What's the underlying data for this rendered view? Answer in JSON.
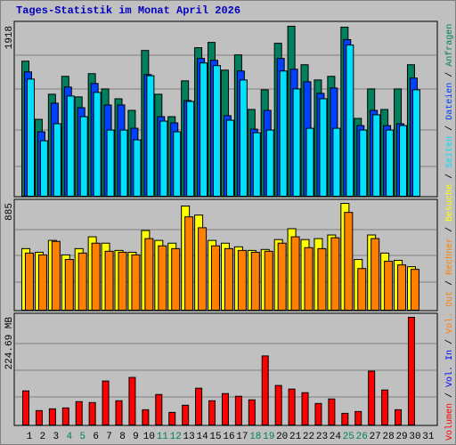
{
  "chart_data": [
    {
      "type": "bar",
      "title": "Tages-Statistik im Monat April 2026",
      "title_color": "#0000c0",
      "ylim": [
        0,
        1918
      ],
      "yticks": [
        1918
      ],
      "series": [
        {
          "name": "Anfragen",
          "color": "#00805c",
          "values": [
            1524,
            868,
            1151,
            1353,
            1121,
            1383,
            1211,
            1100,
            969,
            1645,
            1151,
            898,
            1302,
            1676,
            1736,
            1423,
            1595,
            979,
            1201,
            1726,
            1918,
            1484,
            1312,
            1353,
            1908,
            878,
            1211,
            979,
            1211,
            1484,
            null
          ]
        },
        {
          "name": "Dateien",
          "color": "#0040ff",
          "values": [
            1403,
            727,
            1050,
            1232,
            999,
            1272,
            1030,
            1030,
            767,
            1373,
            898,
            828,
            1080,
            1555,
            1534,
            909,
            1413,
            757,
            969,
            1555,
            1433,
            1292,
            1161,
            1221,
            1767,
            797,
            969,
            797,
            818,
            1333,
            null
          ]
        },
        {
          "name": "Seiten",
          "color": "#00e0ff",
          "values": [
            1322,
            626,
            818,
            1131,
            898,
            1171,
            747,
            747,
            636,
            1360,
            848,
            727,
            1070,
            1504,
            1474,
            858,
            1312,
            717,
            747,
            1413,
            1211,
            767,
            1100,
            767,
            1706,
            747,
            919,
            747,
            797,
            1201,
            null
          ]
        }
      ]
    },
    {
      "type": "bar",
      "ylim": [
        0,
        885
      ],
      "yticks": [
        885
      ],
      "series": [
        {
          "name": "Besuche",
          "color": "#ffff00",
          "values": [
            510,
            480,
            578,
            458,
            510,
            608,
            555,
            495,
            480,
            660,
            578,
            555,
            863,
            788,
            578,
            555,
            525,
            495,
            503,
            585,
            675,
            585,
            593,
            623,
            885,
            420,
            623,
            473,
            413,
            360,
            null
          ]
        },
        {
          "name": "Rechner",
          "color": "#ff8000",
          "values": [
            473,
            458,
            570,
            420,
            473,
            555,
            488,
            480,
            458,
            593,
            533,
            510,
            773,
            683,
            533,
            510,
            495,
            480,
            488,
            555,
            608,
            518,
            510,
            600,
            810,
            345,
            593,
            405,
            375,
            338,
            null
          ]
        }
      ]
    },
    {
      "type": "bar",
      "ylim": [
        0,
        224.69
      ],
      "yticks": [
        {
          "value": 224.69,
          "label": "224.69 MB"
        }
      ],
      "categories": [
        "1",
        "2",
        "3",
        "4",
        "5",
        "6",
        "7",
        "8",
        "9",
        "10",
        "11",
        "12",
        "13",
        "14",
        "15",
        "16",
        "17",
        "18",
        "19",
        "20",
        "21",
        "22",
        "23",
        "24",
        "25",
        "26",
        "27",
        "28",
        "29",
        "30",
        "31"
      ],
      "category_colors": [
        "#000000",
        "#000000",
        "#000000",
        "#00805c",
        "#00805c",
        "#000000",
        "#000000",
        "#000000",
        "#000000",
        "#000000",
        "#00805c",
        "#00805c",
        "#000000",
        "#000000",
        "#000000",
        "#000000",
        "#000000",
        "#00805c",
        "#00805c",
        "#000000",
        "#000000",
        "#000000",
        "#000000",
        "#000000",
        "#00805c",
        "#00805c",
        "#000000",
        "#000000",
        "#000000",
        "#000000",
        "#000000"
      ],
      "series": [
        {
          "name": "Volumen",
          "color": "#ff0000",
          "values": [
            71.1,
            30.0,
            33.7,
            35.6,
            48.7,
            46.8,
            91.7,
            50.5,
            99.2,
            31.8,
            63.6,
            26.2,
            41.2,
            76.7,
            50.5,
            65.5,
            59.9,
            52.4,
            144.1,
            82.4,
            74.9,
            67.4,
            44.9,
            54.3,
            24.3,
            28.1,
            112.3,
            73.0,
            31.8,
            224.69,
            null
          ]
        }
      ],
      "extra_legend": [
        {
          "name": "Vol. In",
          "color": "#0000ff"
        },
        {
          "name": "Vol. Out",
          "color": "#ff8000"
        }
      ],
      "legend_separator": " / "
    }
  ]
}
